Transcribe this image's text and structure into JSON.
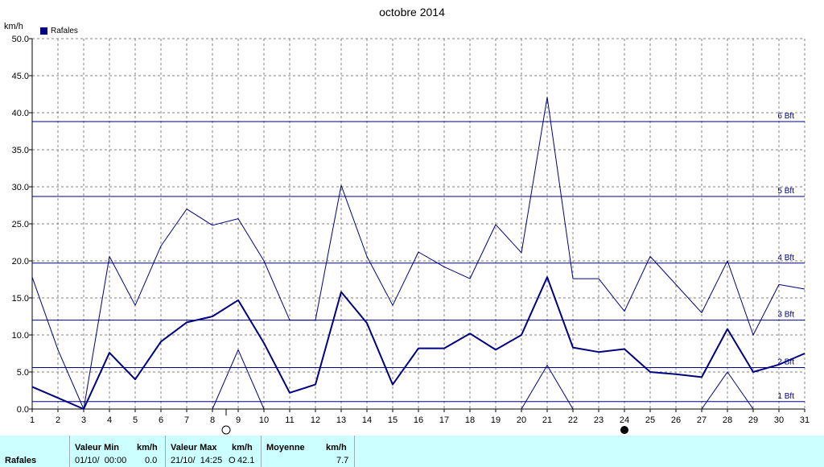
{
  "chart_data": {
    "type": "line",
    "title": "octobre 2014",
    "ylabel": "km/h",
    "legend": {
      "label": "Rafales",
      "color": "#000080",
      "placement": "top-left"
    },
    "ylim": [
      0,
      50
    ],
    "yticks": [
      "0.0",
      "5.0",
      "10.0",
      "15.0",
      "20.0",
      "25.0",
      "30.0",
      "35.0",
      "40.0",
      "45.0",
      "50.0"
    ],
    "x": [
      1,
      2,
      3,
      4,
      5,
      6,
      7,
      8,
      9,
      10,
      11,
      12,
      13,
      14,
      15,
      16,
      17,
      18,
      19,
      20,
      21,
      22,
      23,
      24,
      25,
      26,
      27,
      28,
      29,
      30,
      31
    ],
    "grid": true,
    "series": [
      {
        "role": "max",
        "values": [
          17.8,
          8.0,
          0.0,
          20.6,
          14.0,
          22.0,
          27.0,
          24.8,
          25.7,
          20.0,
          12.0,
          12.0,
          30.2,
          20.6,
          14.0,
          21.2,
          19.2,
          17.6,
          24.9,
          21.1,
          42.1,
          17.6,
          17.6,
          13.2,
          20.6,
          16.8,
          13.0,
          20.0,
          10.0,
          16.8,
          16.2
        ]
      },
      {
        "role": "mean",
        "values": [
          3.0,
          1.5,
          0.0,
          7.6,
          4.0,
          9.1,
          11.7,
          12.5,
          14.7,
          8.9,
          2.2,
          3.3,
          15.8,
          11.6,
          3.3,
          8.2,
          8.2,
          10.2,
          8.0,
          10.0,
          17.8,
          8.3,
          7.7,
          8.1,
          5.0,
          4.7,
          4.3,
          10.8,
          5.0,
          6.0,
          7.5
        ]
      },
      {
        "role": "min",
        "values": [
          null,
          null,
          null,
          null,
          null,
          null,
          null,
          0.0,
          8.0,
          0.0,
          null,
          null,
          null,
          null,
          null,
          null,
          null,
          null,
          null,
          0.0,
          5.9,
          0.0,
          null,
          null,
          null,
          null,
          0.0,
          5.0,
          0.0,
          null,
          null
        ]
      }
    ],
    "beaufort": [
      {
        "label": "1 Bft",
        "value": 1.0
      },
      {
        "label": "2 Bft",
        "value": 5.6
      },
      {
        "label": "3 Bft",
        "value": 12.0
      },
      {
        "label": "4 Bft",
        "value": 19.7
      },
      {
        "label": "5 Bft",
        "value": 28.7
      },
      {
        "label": "6 Bft",
        "value": 38.8
      }
    ],
    "moon_phases": [
      {
        "day": 8,
        "phase": "full-moon"
      },
      {
        "day": 24,
        "phase": "new-moon"
      }
    ]
  },
  "summary": {
    "row_label": "Rafales",
    "min_header": "Valeur Min",
    "min_unit": "km/h",
    "min_date": "01/10/  00:00",
    "min_value": "0.0",
    "max_header": "Valeur Max",
    "max_unit": "km/h",
    "max_date": "21/10/  14:25",
    "max_dir": "O",
    "max_value": "42.1",
    "mean_header": "Moyenne",
    "mean_unit": "km/h",
    "mean_value": "7.7"
  }
}
